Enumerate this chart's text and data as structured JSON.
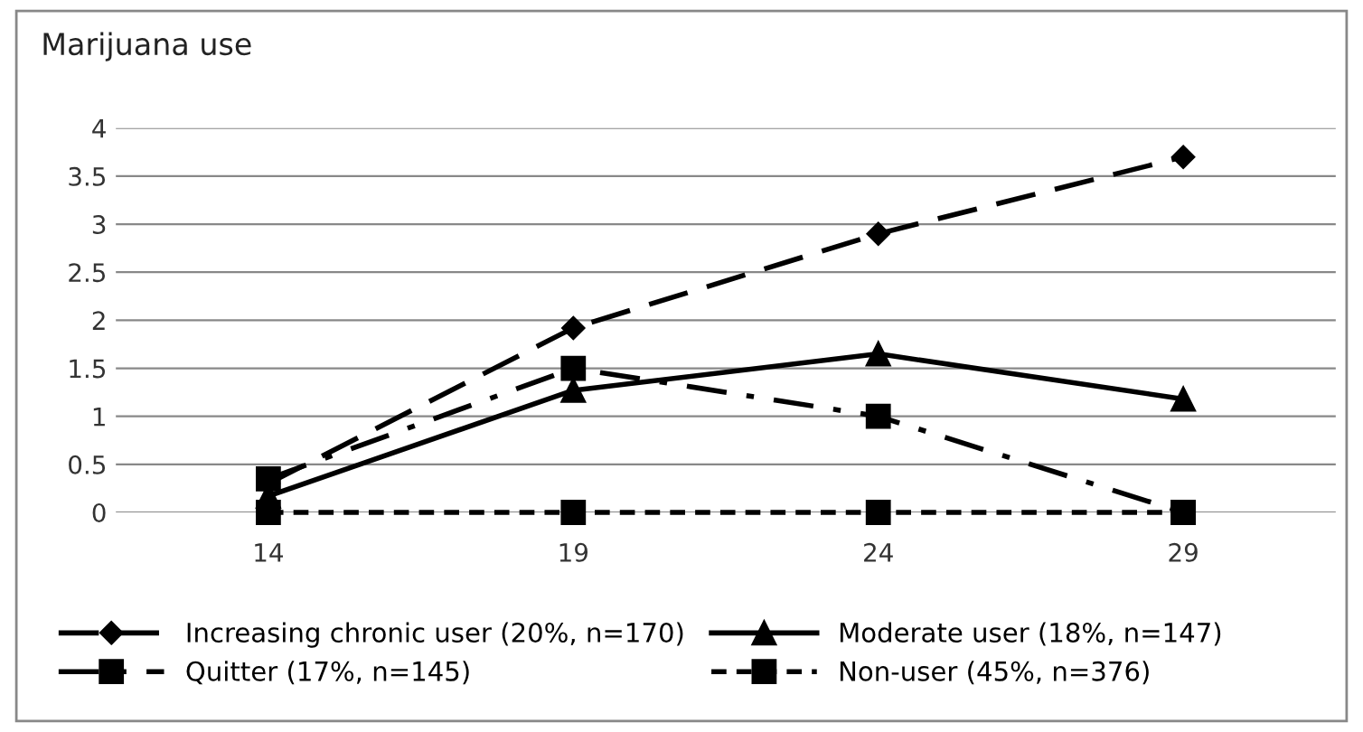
{
  "chart_data": {
    "type": "line",
    "title": "Marijuana use",
    "categories": [
      "14",
      "19",
      "24",
      "29"
    ],
    "series": [
      {
        "name": "Increasing chronic user (20%, n=170)",
        "color": "#000000",
        "marker": "diamond",
        "line_style": "dashed",
        "values": [
          0.3,
          1.92,
          2.9,
          3.7
        ]
      },
      {
        "name": "Moderate user (18%, n=147)",
        "color": "#000000",
        "marker": "triangle",
        "line_style": "solid",
        "values": [
          0.17,
          1.27,
          1.65,
          1.18
        ]
      },
      {
        "name": "Quitter (17%, n=145)",
        "color": "#000000",
        "marker": "square",
        "line_style": "dashdot",
        "values": [
          0.35,
          1.5,
          1.0,
          0.0
        ]
      },
      {
        "name": "Non-user (45%, n=376)",
        "color": "#000000",
        "marker": "square",
        "line_style": "dotted",
        "values": [
          0,
          0,
          0,
          0
        ]
      }
    ],
    "ylim": [
      0,
      4
    ],
    "yticks": [
      0,
      0.5,
      1,
      1.5,
      2,
      2.5,
      3,
      3.5,
      4
    ],
    "grid": "y",
    "legend": "bottom"
  }
}
